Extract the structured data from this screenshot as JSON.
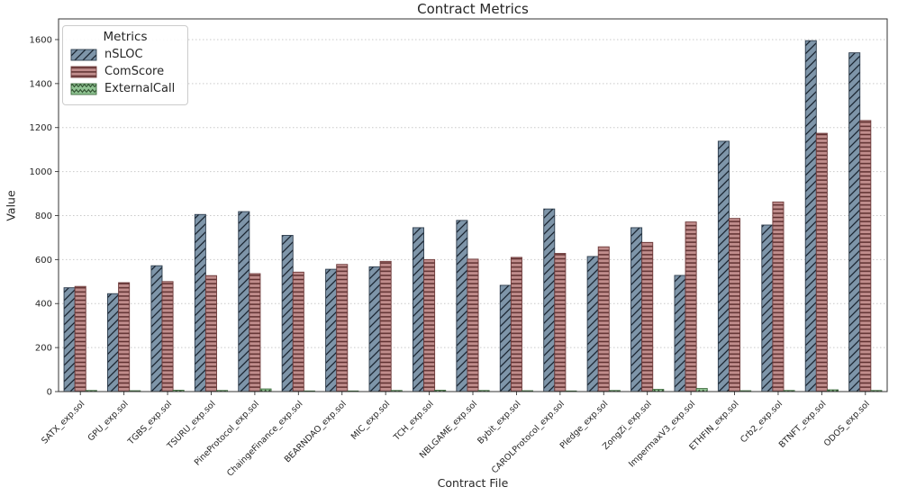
{
  "page": {
    "title": "Contract Metrics"
  },
  "chart_data": {
    "type": "bar",
    "title": "Contract Metrics",
    "xlabel": "Contract File",
    "ylabel": "Value",
    "ylim": [
      0,
      1694
    ],
    "yticks": [
      0,
      200,
      400,
      600,
      800,
      1000,
      1200,
      1400,
      1600
    ],
    "grid": true,
    "grid_style": "dotted horizontal",
    "background": "#ffffff",
    "legend": {
      "title": "Metrics",
      "position": "upper-left"
    },
    "categories": [
      "SATX_exp.sol",
      "GPU_exp.sol",
      "TGBS_exp.sol",
      "TSURU_exp.sol",
      "PineProtocol_exp.sol",
      "ChaingeFinance_exp.sol",
      "BEARNDAO_exp.sol",
      "MIC_exp.sol",
      "TCH_exp.sol",
      "NBLGAME_exp.sol",
      "Bybit_exp.sol",
      "CAROLProtocol_exp.sol",
      "Pledge_exp.sol",
      "ZongZi_exp.sol",
      "ImpermaxV3_exp.sol",
      "ETHFIN_exp.sol",
      "Crb2_exp.sol",
      "BTNFT_exp.sol",
      "ODOS_exp.sol"
    ],
    "series": [
      {
        "name": "nSLOC",
        "fill": "#7e95a9",
        "edge": "#2e3d4d",
        "hatch": "/",
        "hatch_color": "#1a2430",
        "values": [
          472,
          445,
          572,
          805,
          818,
          710,
          556,
          567,
          745,
          778,
          483,
          830,
          614,
          745,
          528,
          1138,
          757,
          1595,
          1540
        ]
      },
      {
        "name": "ComScore",
        "fill": "#c08d8c",
        "edge": "#6e3a3a",
        "hatch": "-",
        "hatch_color": "#5e2f2f",
        "values": [
          478,
          495,
          500,
          527,
          536,
          543,
          578,
          592,
          600,
          602,
          610,
          628,
          658,
          678,
          771,
          787,
          862,
          1174,
          1232
        ]
      },
      {
        "name": "ExternalCall",
        "fill": "#8fc392",
        "edge": "#3e6b3e",
        "hatch": "x",
        "hatch_color": "#2f4f2f",
        "values": [
          5,
          4,
          6,
          5,
          12,
          3,
          3,
          5,
          6,
          5,
          4,
          3,
          5,
          10,
          14,
          4,
          5,
          8,
          5
        ]
      }
    ]
  }
}
